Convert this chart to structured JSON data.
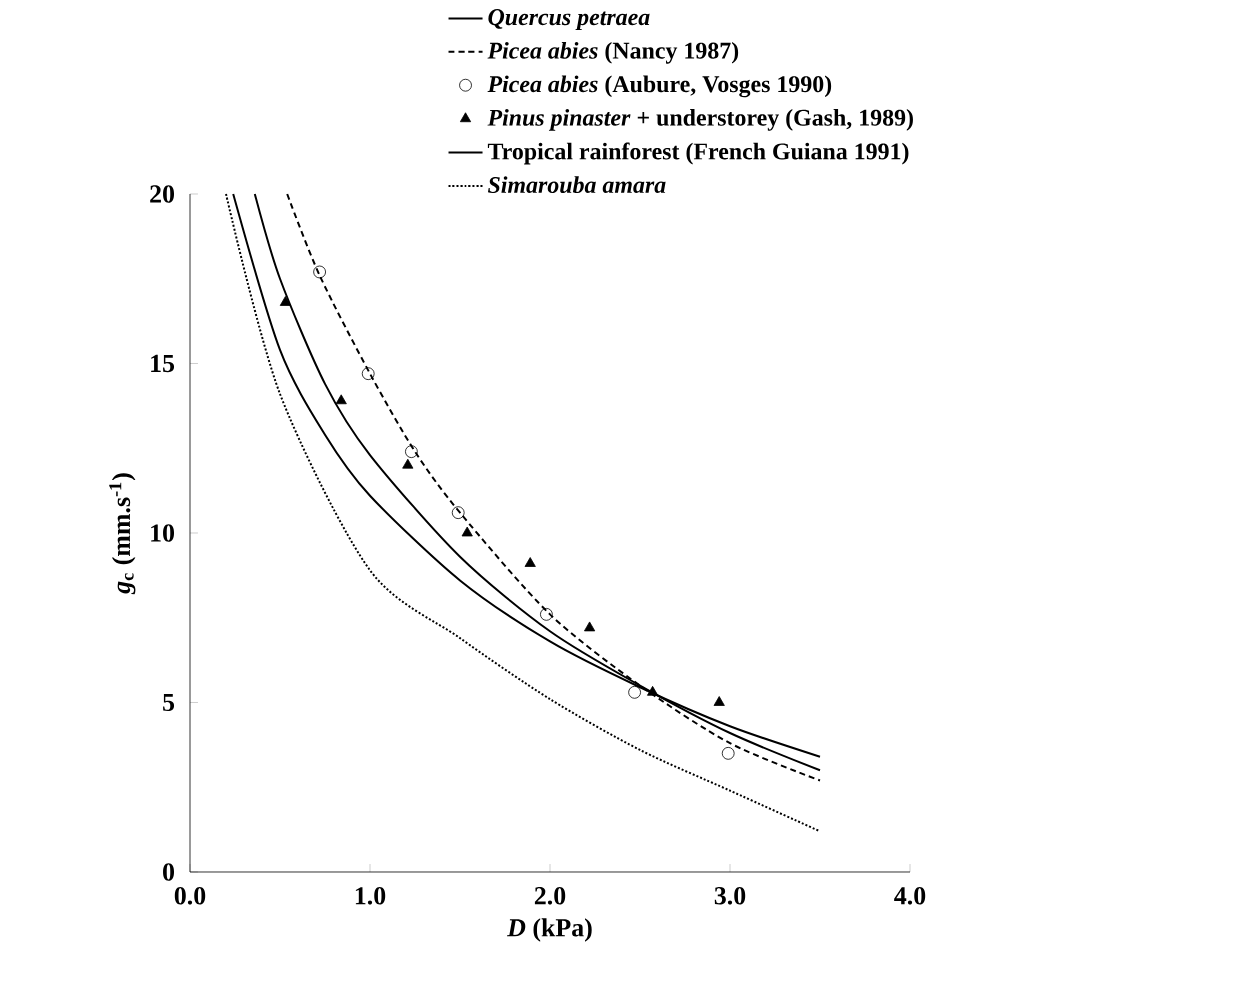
{
  "chart_data": {
    "type": "line",
    "xlabel": "*D*   (kPa)",
    "ylabel": "*g*$_{c}$  (mm.s$^{-1}$)",
    "xlim": [
      0,
      4
    ],
    "ylim": [
      0,
      20
    ],
    "xticks": [
      {
        "value": 0,
        "label": "0.0"
      },
      {
        "value": 1,
        "label": "1.0"
      },
      {
        "value": 2,
        "label": "2.0"
      },
      {
        "value": 3,
        "label": "3.0"
      },
      {
        "value": 4,
        "label": "4.0"
      }
    ],
    "yticks": [
      0,
      5,
      10,
      15,
      20
    ],
    "legend": "top right",
    "marker": "none",
    "series": [
      {
        "name": "*Quercus petraea*",
        "color": "#000000",
        "line_style": "solid",
        "x": [
          0.36,
          0.5,
          0.75,
          1,
          1.5,
          2,
          2.5,
          3,
          3.5
        ],
        "values": [
          20,
          17.5,
          14.4,
          12.3,
          9.3,
          7.1,
          5.5,
          4.1,
          3.0
        ]
      },
      {
        "name": "*Picea abies* (Nancy 1987)",
        "color": "#000000",
        "line_style": "dashed",
        "x": [
          0.54,
          0.72,
          1,
          1.25,
          1.5,
          2,
          2.5,
          3,
          3.5
        ],
        "values": [
          20,
          17.6,
          14.7,
          12.4,
          10.6,
          7.6,
          5.5,
          3.8,
          2.7
        ]
      },
      {
        "name": "*Picea abies* (Aubure, Vosges 1990)",
        "type": "scatter",
        "color": "#000000",
        "marker": "circle",
        "x": [
          0.72,
          0.99,
          1.23,
          1.49,
          1.98,
          2.47,
          2.99
        ],
        "values": [
          17.7,
          14.7,
          12.4,
          10.6,
          7.6,
          5.3,
          3.5
        ]
      },
      {
        "name": "*Pinus pinaster* + understorey (Gash, 1989)",
        "type": "scatter",
        "color": "#000000",
        "marker": "triangle",
        "x": [
          0.53,
          0.84,
          1.21,
          1.54,
          1.89,
          2.22,
          2.57,
          2.94
        ],
        "values": [
          16.8,
          13.9,
          12.0,
          10.0,
          9.1,
          7.2,
          5.3,
          5.0
        ]
      },
      {
        "name": "Tropical rainforest (French Guiana 1991)",
        "color": "#000000",
        "line_style": "solid",
        "x": [
          0.24,
          0.5,
          0.75,
          1,
          1.5,
          2,
          2.5,
          3,
          3.5
        ],
        "values": [
          20,
          15.4,
          12.9,
          11.1,
          8.6,
          6.8,
          5.45,
          4.3,
          3.4
        ]
      },
      {
        "name": "*Simarouba amara*",
        "color": "#000000",
        "line_style": "dotted",
        "x": [
          0.2,
          0.5,
          1,
          1.5,
          2,
          2.5,
          3,
          3.5
        ],
        "values": [
          20,
          14.1,
          8.9,
          6.9,
          5.1,
          3.6,
          2.4,
          1.2
        ]
      }
    ]
  }
}
